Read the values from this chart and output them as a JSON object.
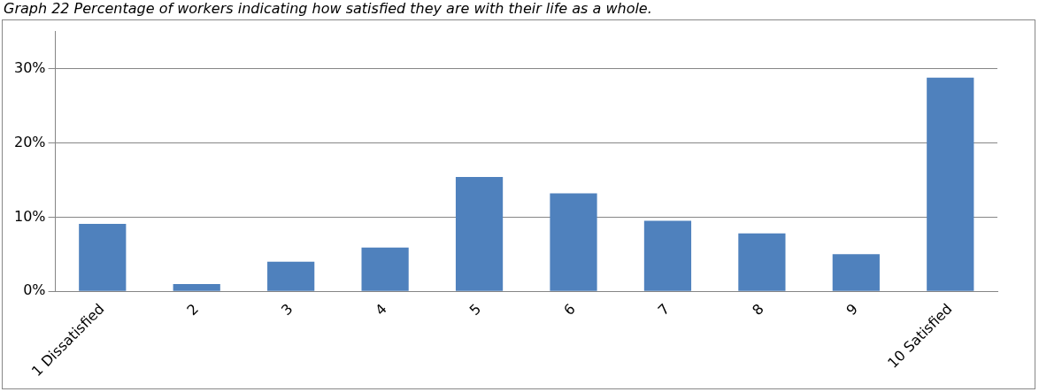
{
  "chart_data": {
    "type": "bar",
    "title": "Graph 22  Percentage of workers indicating how satisfied they are with their life as a whole.",
    "categories": [
      "1 Dissatisfied",
      "2",
      "3",
      "4",
      "5",
      "6",
      "7",
      "8",
      "9",
      "10 Satisfied"
    ],
    "values": [
      9.1,
      1.0,
      4.0,
      5.9,
      15.4,
      13.2,
      9.5,
      7.8,
      5.0,
      28.8
    ],
    "color": "#4f81bd",
    "ylim": [
      0,
      35
    ],
    "yticks": [
      {
        "value": 0,
        "label": "0%"
      },
      {
        "value": 10,
        "label": "10%"
      },
      {
        "value": 20,
        "label": "20%"
      },
      {
        "value": 30,
        "label": "30%"
      }
    ],
    "grid": "y",
    "legend": false
  }
}
